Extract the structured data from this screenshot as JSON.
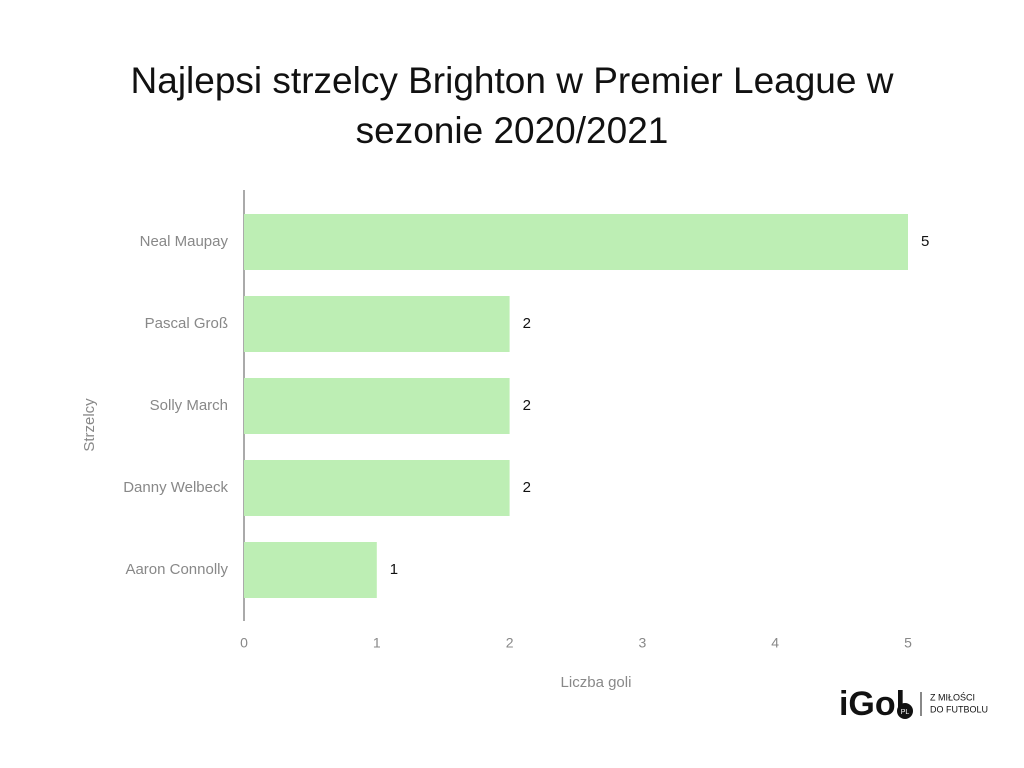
{
  "chart_data": {
    "type": "barh",
    "title": "Najlepsi strzelcy Brighton w Premier League w sezonie 2020/2021",
    "categories": [
      "Neal Maupay",
      "Pascal Groß",
      "Solly March",
      "Danny Welbeck",
      "Aaron Connolly"
    ],
    "values": [
      5,
      2,
      2,
      2,
      1
    ],
    "color": "#bdeeb4",
    "xlim": [
      0,
      5
    ],
    "xticks": [
      0,
      1,
      2,
      3,
      4,
      5
    ],
    "grid": false,
    "x_label": "Liczba goli",
    "y_label": "Strzelcy"
  },
  "logo": {
    "name": "iGol",
    "badge": "PL",
    "tagline": [
      "Z MIŁOŚCI",
      "DO FUTBOLU"
    ]
  }
}
